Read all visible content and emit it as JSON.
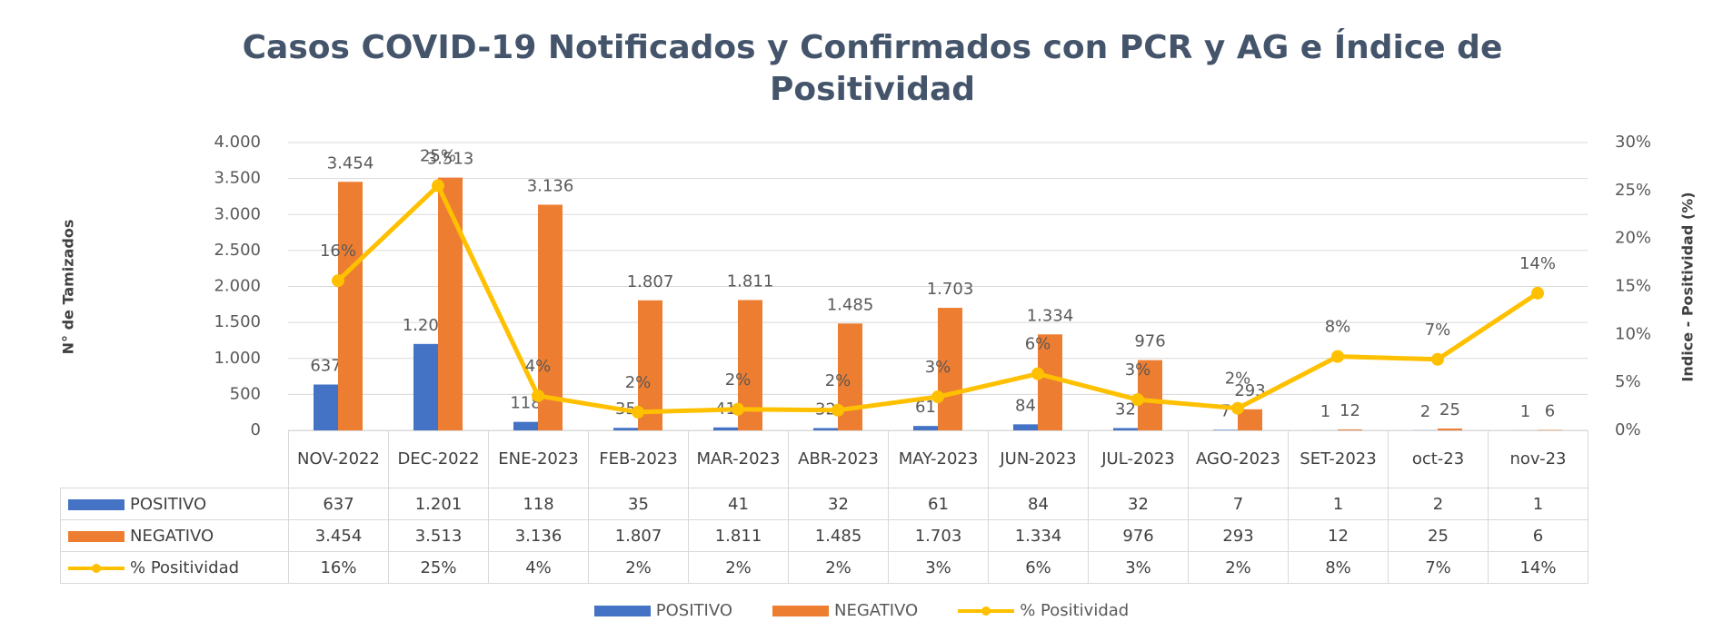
{
  "chart_data": {
    "type": "bar",
    "title": "Casos COVID-19 Notificados y Confirmados con PCR y AG e Índice de Positividad",
    "y_axis_label": "N° de Tamizados",
    "y2_axis_label": "Indice - Positividad (%)",
    "categories": [
      "NOV-2022",
      "DEC-2022",
      "ENE-2023",
      "FEB-2023",
      "MAR-2023",
      "ABR-2023",
      "MAY-2023",
      "JUN-2023",
      "JUL-2023",
      "AGO-2023",
      "SET-2023",
      "oct-23",
      "nov-23"
    ],
    "series": [
      {
        "name": "POSITIVO",
        "type": "bar",
        "color": "#4472c4",
        "values": [
          637,
          1201,
          118,
          35,
          41,
          32,
          61,
          84,
          32,
          7,
          1,
          2,
          1
        ],
        "value_labels": [
          "637",
          "1.201",
          "118",
          "35",
          "41",
          "32",
          "61",
          "84",
          "32",
          "7",
          "1",
          "2",
          "1"
        ]
      },
      {
        "name": "NEGATIVO",
        "type": "bar",
        "color": "#ed7d31",
        "values": [
          3454,
          3513,
          3136,
          1807,
          1811,
          1485,
          1703,
          1334,
          976,
          293,
          12,
          25,
          6
        ],
        "value_labels": [
          "3.454",
          "3.513",
          "3.136",
          "1.807",
          "1.811",
          "1.485",
          "1.703",
          "1.334",
          "976",
          "293",
          "12",
          "25",
          "6"
        ]
      },
      {
        "name": "% Positividad",
        "type": "line",
        "axis": "y2",
        "color": "#ffc000",
        "values": [
          15.6,
          25.5,
          3.6,
          1.9,
          2.2,
          2.1,
          3.5,
          5.9,
          3.2,
          2.3,
          7.7,
          7.4,
          14.3
        ],
        "value_labels": [
          "16%",
          "25%",
          "4%",
          "2%",
          "2%",
          "2%",
          "3%",
          "6%",
          "3%",
          "2%",
          "8%",
          "7%",
          "14%"
        ]
      }
    ],
    "ylim": [
      0,
      4000
    ],
    "yticks": [
      0,
      500,
      {
        "value": 1000,
        "label": "1.000"
      },
      {
        "value": 1500,
        "label": "1.500"
      },
      {
        "value": 2000,
        "label": "2.000"
      },
      {
        "value": 2500,
        "label": "2.500"
      },
      {
        "value": 3000,
        "label": "3.000"
      },
      {
        "value": 3500,
        "label": "3.500"
      },
      {
        "value": 4000,
        "label": "4.000"
      }
    ],
    "y2lim": [
      0,
      30
    ],
    "y2ticks": [
      {
        "value": 0,
        "label": "0%"
      },
      {
        "value": 5,
        "label": "5%"
      },
      {
        "value": 10,
        "label": "10%"
      },
      {
        "value": 15,
        "label": "15%"
      },
      {
        "value": 20,
        "label": "20%"
      },
      {
        "value": 25,
        "label": "25%"
      },
      {
        "value": 30,
        "label": "30%"
      }
    ],
    "grid": true,
    "legend": "bottom",
    "data_table": true
  }
}
